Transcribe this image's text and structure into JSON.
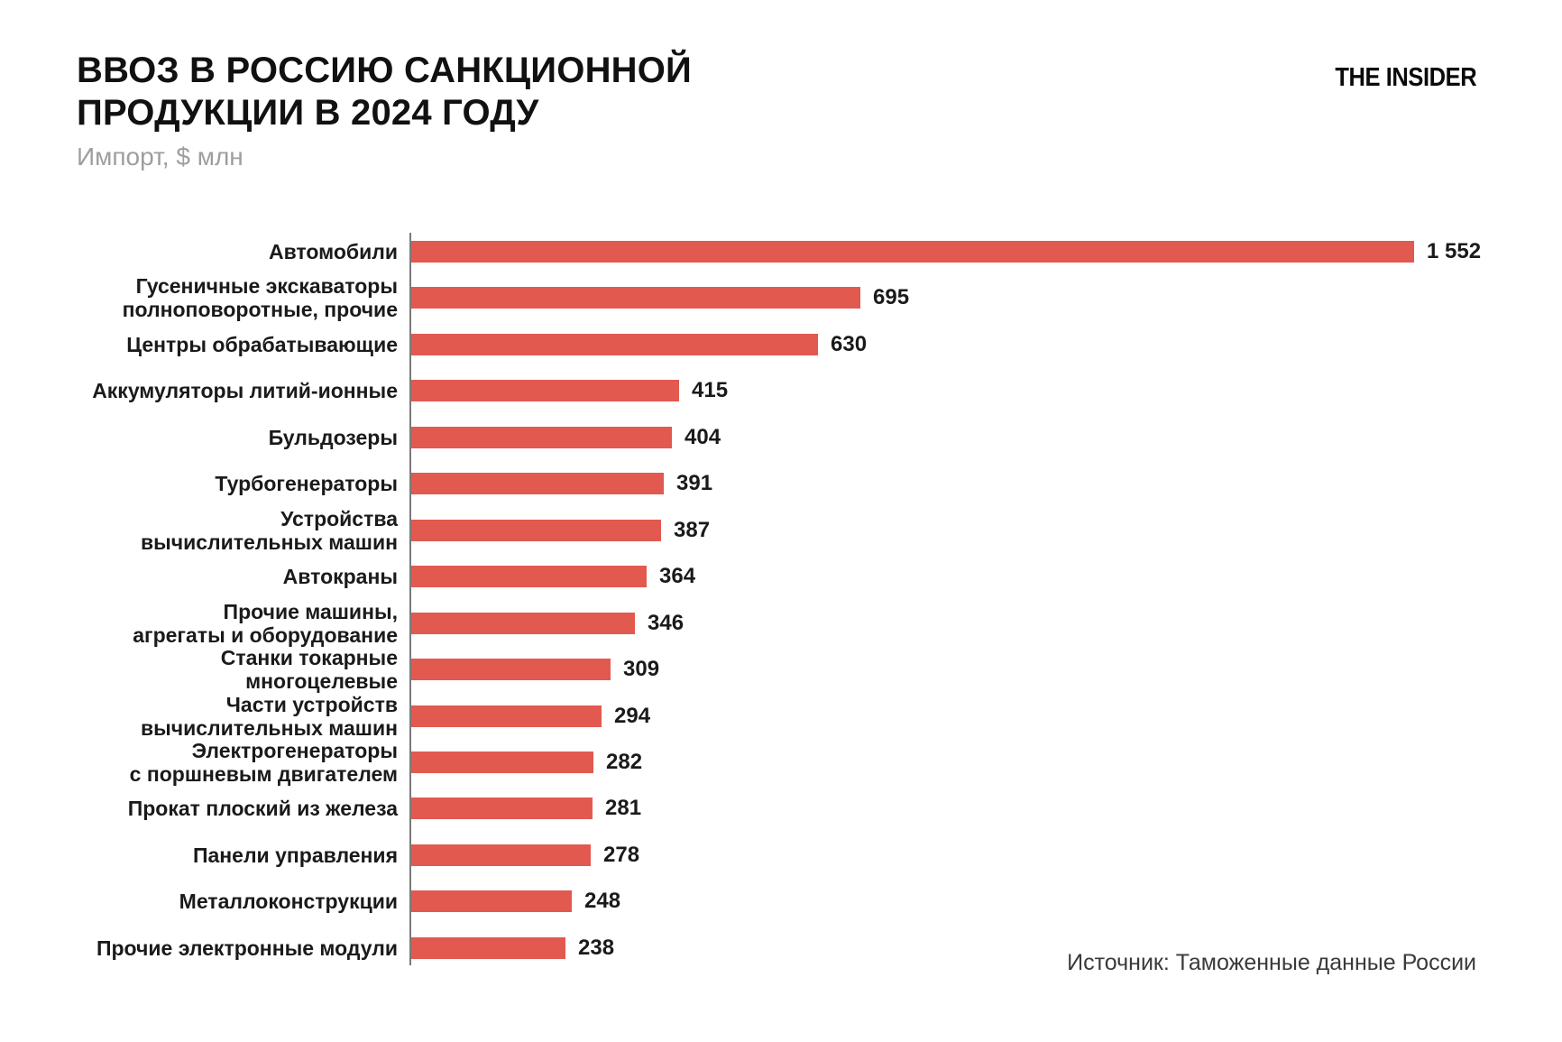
{
  "header": {
    "title_line1": "ВВОЗ В РОССИЮ САНКЦИОННОЙ",
    "title_line2": "ПРОДУКЦИИ В 2024 ГОДУ",
    "subtitle": "Импорт, $ млн",
    "logo": "THE INSIDER"
  },
  "source": "Источник: Таможенные данные России",
  "colors": {
    "bar": "#e2594f",
    "axis": "#7a7a7a",
    "title": "#111111",
    "subtitle": "#9e9e9e",
    "label": "#1a1a1a",
    "source": "#3a3a3a",
    "background": "#ffffff"
  },
  "chart_data": {
    "type": "bar",
    "orientation": "horizontal",
    "title": "ВВОЗ В РОССИЮ САНКЦИОННОЙ ПРОДУКЦИИ В 2024 ГОДУ",
    "subtitle": "Импорт, $ млн",
    "xlabel": "",
    "ylabel": "",
    "xlim": [
      0,
      1650
    ],
    "grid": false,
    "legend": false,
    "categories": [
      "Автомобили",
      "Гусеничные экскаваторы\nполноповоротные, прочие",
      "Центры обрабатывающие",
      "Аккумуляторы литий-ионные",
      "Бульдозеры",
      "Турбогенераторы",
      "Устройства\nвычислительных машин",
      "Автокраны",
      "Прочие машины,\nагрегаты и оборудование",
      "Станки токарные многоцелевые",
      "Части устройств\nвычислительных машин",
      "Электрогенераторы\nс поршневым двигателем",
      "Прокат плоский из железа",
      "Панели управления",
      "Металлоконструкции",
      "Прочие электронные модули"
    ],
    "values": [
      1552,
      695,
      630,
      415,
      404,
      391,
      387,
      364,
      346,
      309,
      294,
      282,
      281,
      278,
      248,
      238
    ],
    "value_labels": [
      "1 552",
      "695",
      "630",
      "415",
      "404",
      "391",
      "387",
      "364",
      "346",
      "309",
      "294",
      "282",
      "281",
      "278",
      "248",
      "238"
    ]
  }
}
